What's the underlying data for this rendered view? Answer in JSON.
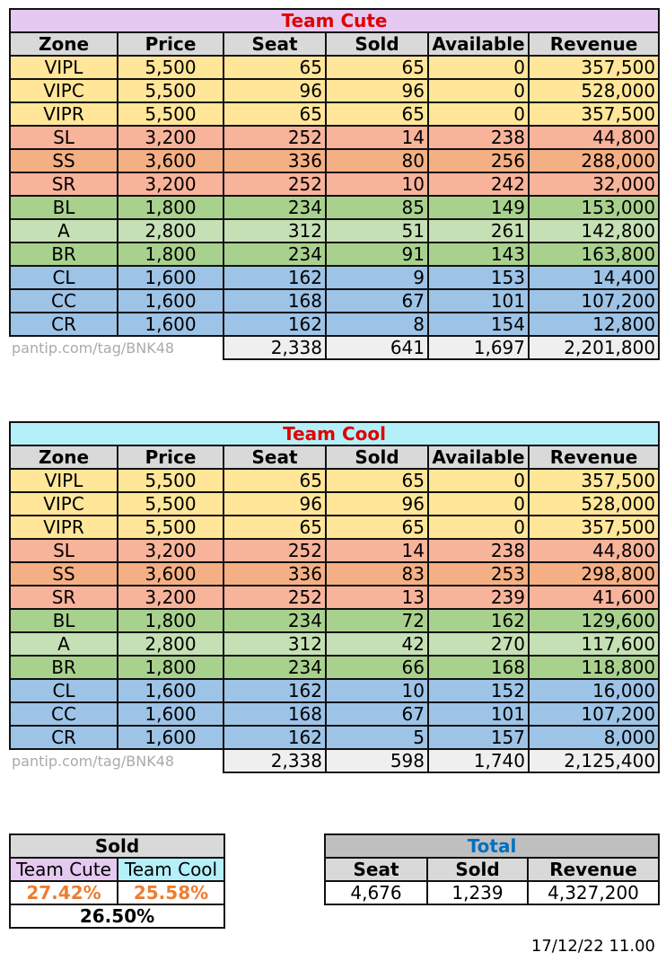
{
  "headers": [
    "Zone",
    "Price",
    "Seat",
    "Sold",
    "Available",
    "Revenue"
  ],
  "watermark": "pantip.com/tag/BNK48",
  "tables": [
    {
      "title": "Team Cute",
      "title_bg": "#e5c9f0",
      "rows": [
        {
          "zone": "VIPL",
          "price": "5,500",
          "seat": "65",
          "sold": "65",
          "available": "0",
          "revenue": "357,500",
          "group": "vip"
        },
        {
          "zone": "VIPC",
          "price": "5,500",
          "seat": "96",
          "sold": "96",
          "available": "0",
          "revenue": "528,000",
          "group": "vip"
        },
        {
          "zone": "VIPR",
          "price": "5,500",
          "seat": "65",
          "sold": "65",
          "available": "0",
          "revenue": "357,500",
          "group": "vip"
        },
        {
          "zone": "SL",
          "price": "3,200",
          "seat": "252",
          "sold": "14",
          "available": "238",
          "revenue": "44,800",
          "group": "ss"
        },
        {
          "zone": "SS",
          "price": "3,600",
          "seat": "336",
          "sold": "80",
          "available": "256",
          "revenue": "288,000",
          "group": "smid"
        },
        {
          "zone": "SR",
          "price": "3,200",
          "seat": "252",
          "sold": "10",
          "available": "242",
          "revenue": "32,000",
          "group": "ss"
        },
        {
          "zone": "BL",
          "price": "1,800",
          "seat": "234",
          "sold": "85",
          "available": "149",
          "revenue": "153,000",
          "group": "b"
        },
        {
          "zone": "A",
          "price": "2,800",
          "seat": "312",
          "sold": "51",
          "available": "261",
          "revenue": "142,800",
          "group": "bmid"
        },
        {
          "zone": "BR",
          "price": "1,800",
          "seat": "234",
          "sold": "91",
          "available": "143",
          "revenue": "163,800",
          "group": "b"
        },
        {
          "zone": "CL",
          "price": "1,600",
          "seat": "162",
          "sold": "9",
          "available": "153",
          "revenue": "14,400",
          "group": "cz"
        },
        {
          "zone": "CC",
          "price": "1,600",
          "seat": "168",
          "sold": "67",
          "available": "101",
          "revenue": "107,200",
          "group": "cz"
        },
        {
          "zone": "CR",
          "price": "1,600",
          "seat": "162",
          "sold": "8",
          "available": "154",
          "revenue": "12,800",
          "group": "cz"
        }
      ],
      "totals": {
        "seat": "2,338",
        "sold": "641",
        "available": "1,697",
        "revenue": "2,201,800"
      }
    },
    {
      "title": "Team Cool",
      "title_bg": "#b4f0fa",
      "rows": [
        {
          "zone": "VIPL",
          "price": "5,500",
          "seat": "65",
          "sold": "65",
          "available": "0",
          "revenue": "357,500",
          "group": "vip"
        },
        {
          "zone": "VIPC",
          "price": "5,500",
          "seat": "96",
          "sold": "96",
          "available": "0",
          "revenue": "528,000",
          "group": "vip"
        },
        {
          "zone": "VIPR",
          "price": "5,500",
          "seat": "65",
          "sold": "65",
          "available": "0",
          "revenue": "357,500",
          "group": "vip"
        },
        {
          "zone": "SL",
          "price": "3,200",
          "seat": "252",
          "sold": "14",
          "available": "238",
          "revenue": "44,800",
          "group": "ss"
        },
        {
          "zone": "SS",
          "price": "3,600",
          "seat": "336",
          "sold": "83",
          "available": "253",
          "revenue": "298,800",
          "group": "smid"
        },
        {
          "zone": "SR",
          "price": "3,200",
          "seat": "252",
          "sold": "13",
          "available": "239",
          "revenue": "41,600",
          "group": "ss"
        },
        {
          "zone": "BL",
          "price": "1,800",
          "seat": "234",
          "sold": "72",
          "available": "162",
          "revenue": "129,600",
          "group": "b"
        },
        {
          "zone": "A",
          "price": "2,800",
          "seat": "312",
          "sold": "42",
          "available": "270",
          "revenue": "117,600",
          "group": "bmid"
        },
        {
          "zone": "BR",
          "price": "1,800",
          "seat": "234",
          "sold": "66",
          "available": "168",
          "revenue": "118,800",
          "group": "b"
        },
        {
          "zone": "CL",
          "price": "1,600",
          "seat": "162",
          "sold": "10",
          "available": "152",
          "revenue": "16,000",
          "group": "cz"
        },
        {
          "zone": "CC",
          "price": "1,600",
          "seat": "168",
          "sold": "67",
          "available": "101",
          "revenue": "107,200",
          "group": "cz"
        },
        {
          "zone": "CR",
          "price": "1,600",
          "seat": "162",
          "sold": "5",
          "available": "157",
          "revenue": "8,000",
          "group": "cz"
        }
      ],
      "totals": {
        "seat": "2,338",
        "sold": "598",
        "available": "1,740",
        "revenue": "2,125,400"
      }
    }
  ],
  "sold_summary": {
    "title": "Sold",
    "labels": [
      "Team Cute",
      "Team Cool"
    ],
    "label_colors": [
      "#e5c9f0",
      "#b4f0fa"
    ],
    "values": [
      "27.42%",
      "25.58%"
    ],
    "combined": "26.50%"
  },
  "total_summary": {
    "title": "Total",
    "title_color": "#0070c0",
    "headers": [
      "Seat",
      "Sold",
      "Revenue"
    ],
    "values": [
      "4,676",
      "1,239",
      "4,327,200"
    ]
  },
  "timestamp": "17/12/22 11.00"
}
